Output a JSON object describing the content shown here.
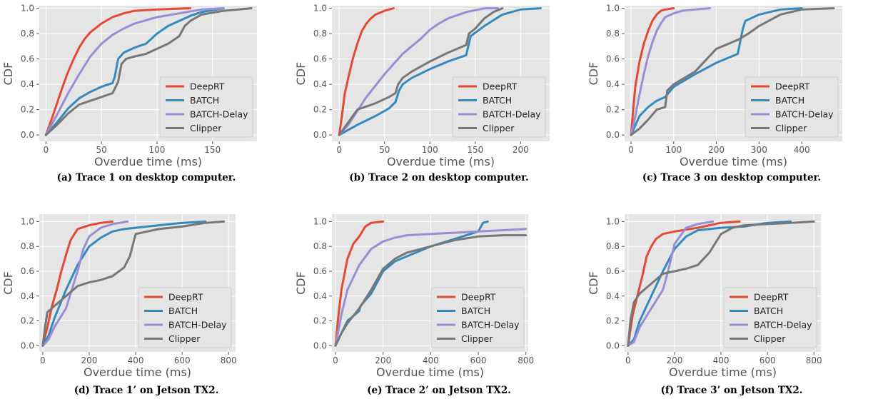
{
  "chart_data": [
    {
      "type": "line",
      "caption": "(a) Trace 1 on desktop computer.",
      "xlabel": "Overdue time (ms)",
      "ylabel": "CDF",
      "xlim": [
        -6,
        190
      ],
      "ylim": [
        -0.05,
        1.02
      ],
      "xticks": [
        "0",
        "50",
        "100",
        "150"
      ],
      "yticks": [
        "0.0",
        "0.2",
        "0.4",
        "0.6",
        "0.8",
        "1.0"
      ],
      "grid": true,
      "legend_position": "bottom-right",
      "series": [
        {
          "name": "DeepRT",
          "color": "#E24A33",
          "x": [
            0,
            5,
            10,
            15,
            20,
            25,
            30,
            35,
            40,
            50,
            60,
            70,
            80,
            100,
            130
          ],
          "y": [
            0,
            0.12,
            0.25,
            0.38,
            0.5,
            0.6,
            0.69,
            0.76,
            0.81,
            0.88,
            0.93,
            0.96,
            0.98,
            0.99,
            1.0
          ]
        },
        {
          "name": "BATCH",
          "color": "#348ABD",
          "x": [
            0,
            10,
            20,
            30,
            40,
            50,
            60,
            62,
            65,
            70,
            80,
            90,
            100,
            110,
            120,
            130,
            140,
            160
          ],
          "y": [
            0,
            0.1,
            0.21,
            0.29,
            0.34,
            0.38,
            0.41,
            0.46,
            0.6,
            0.65,
            0.69,
            0.72,
            0.8,
            0.86,
            0.9,
            0.94,
            0.97,
            1.0
          ]
        },
        {
          "name": "BATCH-Delay",
          "color": "#988ED5",
          "x": [
            0,
            10,
            20,
            30,
            40,
            50,
            60,
            70,
            80,
            100,
            120,
            140,
            160
          ],
          "y": [
            0,
            0.16,
            0.33,
            0.48,
            0.62,
            0.72,
            0.79,
            0.84,
            0.88,
            0.93,
            0.96,
            0.99,
            1.0
          ]
        },
        {
          "name": "Clipper",
          "color": "#777777",
          "x": [
            0,
            10,
            20,
            30,
            40,
            50,
            60,
            65,
            68,
            72,
            80,
            90,
            100,
            110,
            120,
            125,
            130,
            140,
            160,
            185
          ],
          "y": [
            0,
            0.08,
            0.17,
            0.24,
            0.27,
            0.3,
            0.33,
            0.42,
            0.56,
            0.6,
            0.62,
            0.64,
            0.68,
            0.72,
            0.78,
            0.86,
            0.9,
            0.95,
            0.98,
            1.0
          ]
        }
      ]
    },
    {
      "type": "line",
      "caption": "(b) Trace 2 on desktop computer.",
      "xlabel": "Overdue time (ms)",
      "ylabel": "CDF",
      "xlim": [
        -8,
        232
      ],
      "ylim": [
        -0.05,
        1.02
      ],
      "xticks": [
        "0",
        "50",
        "100",
        "150",
        "200"
      ],
      "yticks": [
        "0.0",
        "0.2",
        "0.4",
        "0.6",
        "0.8",
        "1.0"
      ],
      "grid": true,
      "legend_position": "bottom-right",
      "series": [
        {
          "name": "DeepRT",
          "color": "#E24A33",
          "x": [
            0,
            3,
            6,
            10,
            15,
            20,
            25,
            30,
            35,
            40,
            50,
            60
          ],
          "y": [
            0,
            0.15,
            0.32,
            0.45,
            0.6,
            0.72,
            0.82,
            0.88,
            0.92,
            0.95,
            0.98,
            1.0
          ]
        },
        {
          "name": "BATCH",
          "color": "#348ABD",
          "x": [
            0,
            20,
            40,
            55,
            62,
            66,
            70,
            80,
            100,
            120,
            140,
            145,
            160,
            180,
            200,
            222
          ],
          "y": [
            0,
            0.08,
            0.15,
            0.21,
            0.26,
            0.35,
            0.4,
            0.45,
            0.52,
            0.58,
            0.63,
            0.78,
            0.86,
            0.95,
            0.99,
            1.0
          ]
        },
        {
          "name": "BATCH-Delay",
          "color": "#988ED5",
          "x": [
            0,
            10,
            20,
            30,
            40,
            50,
            60,
            70,
            80,
            90,
            100,
            110,
            120,
            140,
            160,
            175
          ],
          "y": [
            0,
            0.08,
            0.19,
            0.3,
            0.39,
            0.48,
            0.56,
            0.64,
            0.7,
            0.76,
            0.83,
            0.88,
            0.92,
            0.97,
            1.0,
            1.0
          ]
        },
        {
          "name": "Clipper",
          "color": "#777777",
          "x": [
            0,
            10,
            20,
            40,
            55,
            62,
            65,
            70,
            80,
            100,
            120,
            140,
            143,
            150,
            160,
            170,
            180
          ],
          "y": [
            0,
            0.1,
            0.2,
            0.25,
            0.3,
            0.33,
            0.4,
            0.45,
            0.5,
            0.58,
            0.65,
            0.71,
            0.8,
            0.84,
            0.92,
            0.97,
            1.0
          ]
        }
      ]
    },
    {
      "type": "line",
      "caption": "(c) Trace 3 on desktop computer.",
      "xlabel": "Overdue time (ms)",
      "ylabel": "CDF",
      "xlim": [
        -15,
        495
      ],
      "ylim": [
        -0.05,
        1.02
      ],
      "xticks": [
        "0",
        "100",
        "200",
        "300",
        "400"
      ],
      "yticks": [
        "0.0",
        "0.2",
        "0.4",
        "0.6",
        "0.8",
        "1.0"
      ],
      "grid": true,
      "legend_position": "bottom-right",
      "series": [
        {
          "name": "DeepRT",
          "color": "#E24A33",
          "x": [
            0,
            5,
            10,
            20,
            30,
            40,
            50,
            60,
            70,
            80,
            100
          ],
          "y": [
            0,
            0.2,
            0.38,
            0.58,
            0.72,
            0.82,
            0.9,
            0.95,
            0.98,
            0.99,
            1.0
          ]
        },
        {
          "name": "BATCH",
          "color": "#348ABD",
          "x": [
            0,
            20,
            40,
            60,
            80,
            100,
            150,
            200,
            250,
            262,
            268,
            300,
            350,
            400
          ],
          "y": [
            0,
            0.15,
            0.22,
            0.27,
            0.3,
            0.38,
            0.48,
            0.57,
            0.64,
            0.84,
            0.9,
            0.95,
            0.99,
            1.0
          ]
        },
        {
          "name": "BATCH-Delay",
          "color": "#988ED5",
          "x": [
            0,
            10,
            20,
            30,
            40,
            50,
            60,
            70,
            80,
            100,
            120,
            150,
            185
          ],
          "y": [
            0,
            0.15,
            0.32,
            0.48,
            0.62,
            0.73,
            0.82,
            0.88,
            0.93,
            0.96,
            0.98,
            0.99,
            1.0
          ]
        },
        {
          "name": "Clipper",
          "color": "#777777",
          "x": [
            0,
            20,
            40,
            60,
            80,
            85,
            100,
            150,
            200,
            250,
            275,
            300,
            350,
            400,
            475
          ],
          "y": [
            0,
            0.05,
            0.12,
            0.2,
            0.22,
            0.35,
            0.4,
            0.5,
            0.68,
            0.75,
            0.8,
            0.86,
            0.95,
            0.99,
            1.0
          ]
        }
      ]
    },
    {
      "type": "line",
      "caption": "(d) Trace 1’ on Jetson TX2.",
      "xlabel": "Overdue time (ms)",
      "ylabel": "CDF",
      "xlim": [
        -15,
        830
      ],
      "ylim": [
        -0.05,
        1.06
      ],
      "xticks": [
        "0",
        "200",
        "400",
        "600",
        "800"
      ],
      "yticks": [
        "0.0",
        "0.2",
        "0.4",
        "0.6",
        "0.8",
        "1.0"
      ],
      "grid": true,
      "legend_position": "bottom-right",
      "series": [
        {
          "name": "DeepRT",
          "color": "#E24A33",
          "x": [
            0,
            20,
            40,
            60,
            80,
            100,
            120,
            150,
            200,
            250,
            300
          ],
          "y": [
            0,
            0.15,
            0.32,
            0.45,
            0.6,
            0.73,
            0.85,
            0.94,
            0.97,
            0.99,
            1.0
          ]
        },
        {
          "name": "BATCH",
          "color": "#348ABD",
          "x": [
            0,
            25,
            50,
            100,
            150,
            200,
            250,
            300,
            350,
            400,
            500,
            600,
            700
          ],
          "y": [
            0,
            0.08,
            0.22,
            0.45,
            0.65,
            0.8,
            0.87,
            0.92,
            0.94,
            0.95,
            0.97,
            0.99,
            1.0
          ]
        },
        {
          "name": "BATCH-Delay",
          "color": "#988ED5",
          "x": [
            0,
            25,
            50,
            100,
            150,
            175,
            200,
            250,
            300,
            365
          ],
          "y": [
            0,
            0.05,
            0.15,
            0.3,
            0.6,
            0.78,
            0.88,
            0.95,
            0.98,
            1.0
          ]
        },
        {
          "name": "Clipper",
          "color": "#777777",
          "x": [
            0,
            10,
            20,
            50,
            100,
            150,
            200,
            250,
            300,
            350,
            375,
            400,
            450,
            500,
            600,
            700,
            780
          ],
          "y": [
            0,
            0.15,
            0.27,
            0.32,
            0.4,
            0.48,
            0.51,
            0.53,
            0.56,
            0.63,
            0.72,
            0.9,
            0.92,
            0.94,
            0.96,
            0.99,
            1.0
          ]
        }
      ]
    },
    {
      "type": "line",
      "caption": "(e) Trace 2’ on Jetson TX2.",
      "xlabel": "Overdue time (ms)",
      "ylabel": "CDF",
      "xlim": [
        -15,
        810
      ],
      "ylim": [
        -0.05,
        1.06
      ],
      "xticks": [
        "0",
        "200",
        "400",
        "600",
        "800"
      ],
      "yticks": [
        "0.0",
        "0.2",
        "0.4",
        "0.6",
        "0.8",
        "1.0"
      ],
      "grid": true,
      "legend_position": "bottom-right",
      "series": [
        {
          "name": "DeepRT",
          "color": "#E24A33",
          "x": [
            0,
            10,
            25,
            50,
            75,
            100,
            125,
            150,
            200
          ],
          "y": [
            0,
            0.2,
            0.45,
            0.7,
            0.82,
            0.88,
            0.96,
            0.99,
            1.0
          ]
        },
        {
          "name": "BATCH",
          "color": "#348ABD",
          "x": [
            0,
            25,
            50,
            100,
            105,
            150,
            200,
            250,
            300,
            400,
            500,
            600,
            620,
            640
          ],
          "y": [
            0,
            0.1,
            0.2,
            0.28,
            0.32,
            0.42,
            0.6,
            0.68,
            0.72,
            0.8,
            0.86,
            0.92,
            0.99,
            1.0
          ]
        },
        {
          "name": "BATCH-Delay",
          "color": "#988ED5",
          "x": [
            0,
            25,
            50,
            100,
            150,
            200,
            250,
            300,
            400,
            500,
            600,
            700,
            800
          ],
          "y": [
            0,
            0.25,
            0.45,
            0.65,
            0.78,
            0.84,
            0.87,
            0.89,
            0.9,
            0.91,
            0.92,
            0.93,
            0.94
          ]
        },
        {
          "name": "Clipper",
          "color": "#777777",
          "x": [
            0,
            25,
            50,
            100,
            150,
            200,
            250,
            300,
            400,
            500,
            600,
            700,
            800
          ],
          "y": [
            0,
            0.1,
            0.18,
            0.3,
            0.45,
            0.62,
            0.7,
            0.75,
            0.8,
            0.85,
            0.88,
            0.89,
            0.89
          ]
        }
      ]
    },
    {
      "type": "line",
      "caption": "(f) Trace 3’ on Jetson TX2.",
      "xlabel": "Overdue time (ms)",
      "ylabel": "CDF",
      "xlim": [
        -15,
        830
      ],
      "ylim": [
        -0.05,
        1.06
      ],
      "xticks": [
        "0",
        "200",
        "400",
        "600",
        "800"
      ],
      "yticks": [
        "0.0",
        "0.2",
        "0.4",
        "0.6",
        "0.8",
        "1.0"
      ],
      "grid": true,
      "legend_position": "bottom-right",
      "series": [
        {
          "name": "DeepRT",
          "color": "#E24A33",
          "x": [
            0,
            20,
            40,
            60,
            80,
            100,
            120,
            150,
            200,
            300,
            400,
            480
          ],
          "y": [
            0,
            0.25,
            0.4,
            0.55,
            0.72,
            0.8,
            0.86,
            0.9,
            0.92,
            0.95,
            0.99,
            1.0
          ]
        },
        {
          "name": "BATCH",
          "color": "#348ABD",
          "x": [
            0,
            25,
            50,
            100,
            150,
            200,
            250,
            300,
            400,
            500,
            600,
            700
          ],
          "y": [
            0,
            0.05,
            0.2,
            0.4,
            0.6,
            0.78,
            0.88,
            0.93,
            0.95,
            0.96,
            0.99,
            1.0
          ]
        },
        {
          "name": "BATCH-Delay",
          "color": "#988ED5",
          "x": [
            0,
            25,
            50,
            100,
            150,
            175,
            200,
            250,
            300,
            365
          ],
          "y": [
            0,
            0.03,
            0.15,
            0.3,
            0.45,
            0.62,
            0.82,
            0.95,
            0.98,
            1.0
          ]
        },
        {
          "name": "Clipper",
          "color": "#777777",
          "x": [
            0,
            10,
            25,
            50,
            100,
            150,
            200,
            250,
            300,
            350,
            400,
            450,
            500,
            600,
            700,
            800
          ],
          "y": [
            0,
            0.2,
            0.35,
            0.42,
            0.5,
            0.58,
            0.6,
            0.62,
            0.65,
            0.75,
            0.9,
            0.95,
            0.97,
            0.98,
            0.99,
            1.0
          ]
        }
      ]
    }
  ]
}
